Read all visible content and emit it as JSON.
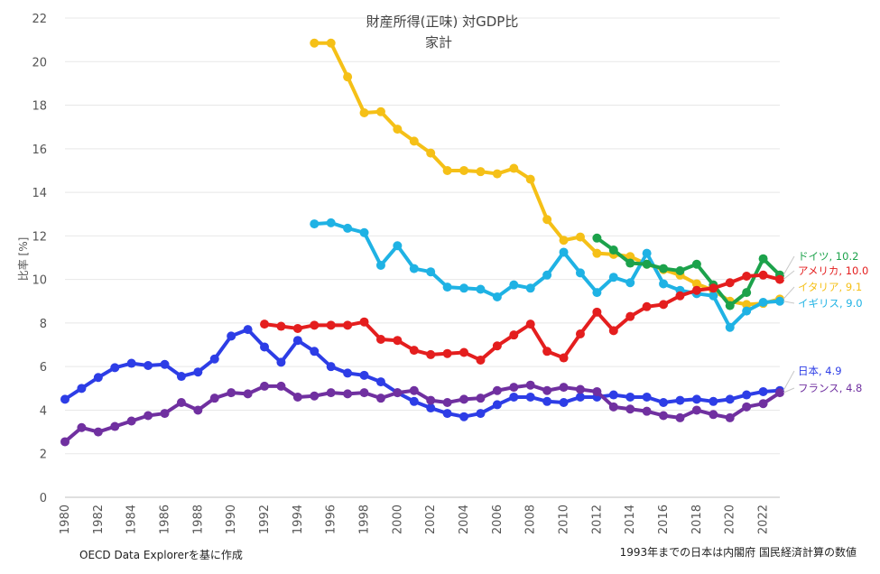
{
  "chart_data": {
    "type": "line",
    "title": "財産所得(正味) 対GDP比",
    "subtitle": "家計",
    "xlabel": "",
    "ylabel": "比率 [%]",
    "xlim": [
      1980,
      2023
    ],
    "ylim": [
      0,
      22
    ],
    "yticks": [
      0,
      2,
      4,
      6,
      8,
      10,
      12,
      14,
      16,
      18,
      20,
      22
    ],
    "xticks": [
      1980,
      1982,
      1984,
      1986,
      1988,
      1990,
      1992,
      1994,
      1996,
      1998,
      2000,
      2002,
      2004,
      2006,
      2008,
      2010,
      2012,
      2014,
      2016,
      2018,
      2020,
      2022
    ],
    "grid": true,
    "legend_position": "right",
    "series": [
      {
        "name": "イタリア",
        "legend_label": "イタリア, 9.1",
        "color": "#f5c017",
        "start_year": 1995,
        "values": [
          20.85,
          20.85,
          19.3,
          17.65,
          17.7,
          16.9,
          16.35,
          15.8,
          15.0,
          15.0,
          14.95,
          14.85,
          15.1,
          14.6,
          12.75,
          11.8,
          11.95,
          11.2,
          11.15,
          11.05,
          10.7,
          10.45,
          10.2,
          9.8,
          9.5,
          9.0,
          8.85,
          8.9,
          9.1
        ]
      },
      {
        "name": "イギリス",
        "legend_label": "イギリス, 9.0",
        "color": "#1fb2e4",
        "start_year": 1995,
        "values": [
          12.55,
          12.6,
          12.35,
          12.15,
          10.65,
          11.55,
          10.5,
          10.35,
          9.65,
          9.6,
          9.55,
          9.2,
          9.75,
          9.6,
          10.2,
          11.25,
          10.3,
          9.4,
          10.1,
          9.85,
          11.2,
          9.8,
          9.5,
          9.35,
          9.25,
          7.8,
          8.55,
          8.95,
          9.0
        ]
      },
      {
        "name": "ドイツ",
        "legend_label": "ドイツ, 10.2",
        "color": "#1ca24b",
        "start_year": 2012,
        "values": [
          11.9,
          11.35,
          10.75,
          10.7,
          10.5,
          10.4,
          10.7,
          9.75,
          8.8,
          9.4,
          10.95,
          10.2
        ]
      },
      {
        "name": "アメリカ",
        "legend_label": "アメリカ, 10.0",
        "color": "#e41e1e",
        "start_year": 1992,
        "values": [
          7.95,
          7.85,
          7.75,
          7.9,
          7.9,
          7.9,
          8.05,
          7.25,
          7.2,
          6.75,
          6.55,
          6.6,
          6.65,
          6.3,
          6.95,
          7.45,
          7.95,
          6.7,
          6.4,
          7.5,
          8.5,
          7.65,
          8.3,
          8.75,
          8.85,
          9.25,
          9.5,
          9.6,
          9.85,
          10.15,
          10.2,
          10.0
        ]
      },
      {
        "name": "日本",
        "legend_label": "日本, 4.9",
        "color": "#2d3de6",
        "start_year": 1980,
        "values": [
          4.5,
          5.0,
          5.5,
          5.95,
          6.15,
          6.05,
          6.1,
          5.55,
          5.75,
          6.35,
          7.4,
          7.7,
          6.9,
          6.2,
          7.2,
          6.7,
          6.0,
          5.7,
          5.6,
          5.3,
          4.8,
          4.4,
          4.1,
          3.85,
          3.7,
          3.85,
          4.25,
          4.6,
          4.6,
          4.4,
          4.35,
          4.6,
          4.6,
          4.7,
          4.6,
          4.6,
          4.35,
          4.45,
          4.5,
          4.4,
          4.5,
          4.7,
          4.85,
          4.9
        ]
      },
      {
        "name": "フランス",
        "legend_label": "フランス, 4.8",
        "color": "#7030a0",
        "start_year": 1980,
        "values": [
          2.55,
          3.2,
          3.0,
          3.25,
          3.5,
          3.75,
          3.85,
          4.35,
          4.0,
          4.55,
          4.8,
          4.75,
          5.1,
          5.1,
          4.6,
          4.65,
          4.8,
          4.75,
          4.8,
          4.55,
          4.8,
          4.9,
          4.45,
          4.35,
          4.5,
          4.55,
          4.9,
          5.05,
          5.15,
          4.9,
          5.05,
          4.95,
          4.85,
          4.15,
          4.05,
          3.95,
          3.75,
          3.65,
          4.0,
          3.8,
          3.65,
          4.15,
          4.3,
          4.8
        ]
      }
    ]
  },
  "notes": {
    "source": "OECD Data Explorerを基に作成",
    "footnote": "1993年までの日本は内閣府 国民経済計算の数値"
  }
}
